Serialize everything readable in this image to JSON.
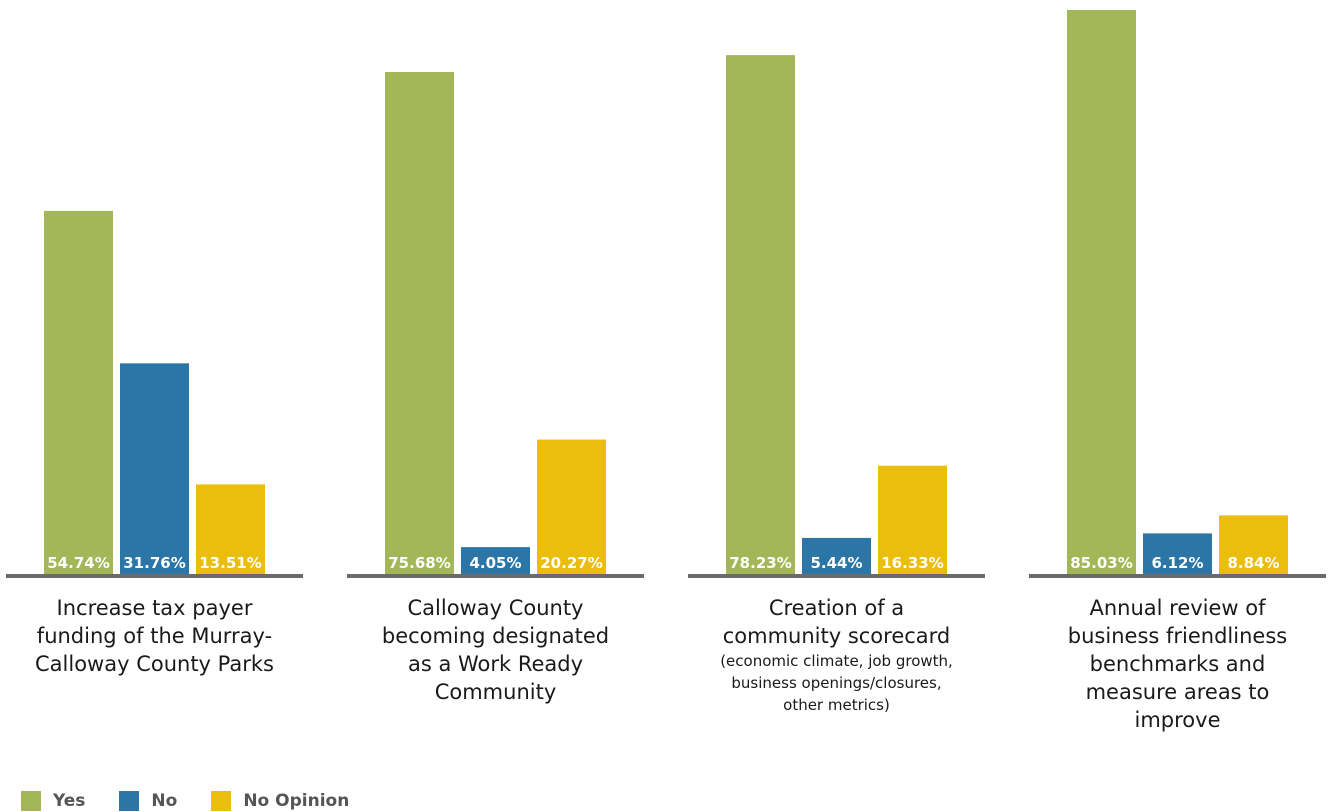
{
  "chart_data": {
    "type": "bar",
    "categories": [
      {
        "label": "Increase tax payer funding of the Murray-Calloway County Parks",
        "sublabel": ""
      },
      {
        "label": "Calloway County becoming designated as a Work Ready Community",
        "sublabel": ""
      },
      {
        "label": "Creation of a community scorecard",
        "sublabel": "(economic climate, job growth, business openings/closures, other metrics)"
      },
      {
        "label": "Annual review of business friendliness benchmarks and measure areas to improve",
        "sublabel": ""
      }
    ],
    "series": [
      {
        "name": "Yes",
        "color": "#a3b759",
        "values": [
          54.74,
          75.68,
          78.23,
          85.03
        ],
        "labels": [
          "54.74%",
          "75.68%",
          "78.23%",
          "85.03%"
        ]
      },
      {
        "name": "No",
        "color": "#2b75a7",
        "values": [
          31.76,
          4.05,
          5.44,
          6.12
        ],
        "labels": [
          "31.76%",
          "4.05%",
          "5.44%",
          "6.12%"
        ]
      },
      {
        "name": "No Opinion",
        "color": "#ebbd0c",
        "values": [
          13.51,
          20.27,
          16.33,
          8.84
        ],
        "labels": [
          "13.51%",
          "20.27%",
          "16.33%",
          "8.84%"
        ]
      }
    ],
    "ylim": [
      0,
      85.03
    ],
    "grid": false,
    "legend": "bottom-left",
    "baseline_color": "#6b6b6b"
  }
}
